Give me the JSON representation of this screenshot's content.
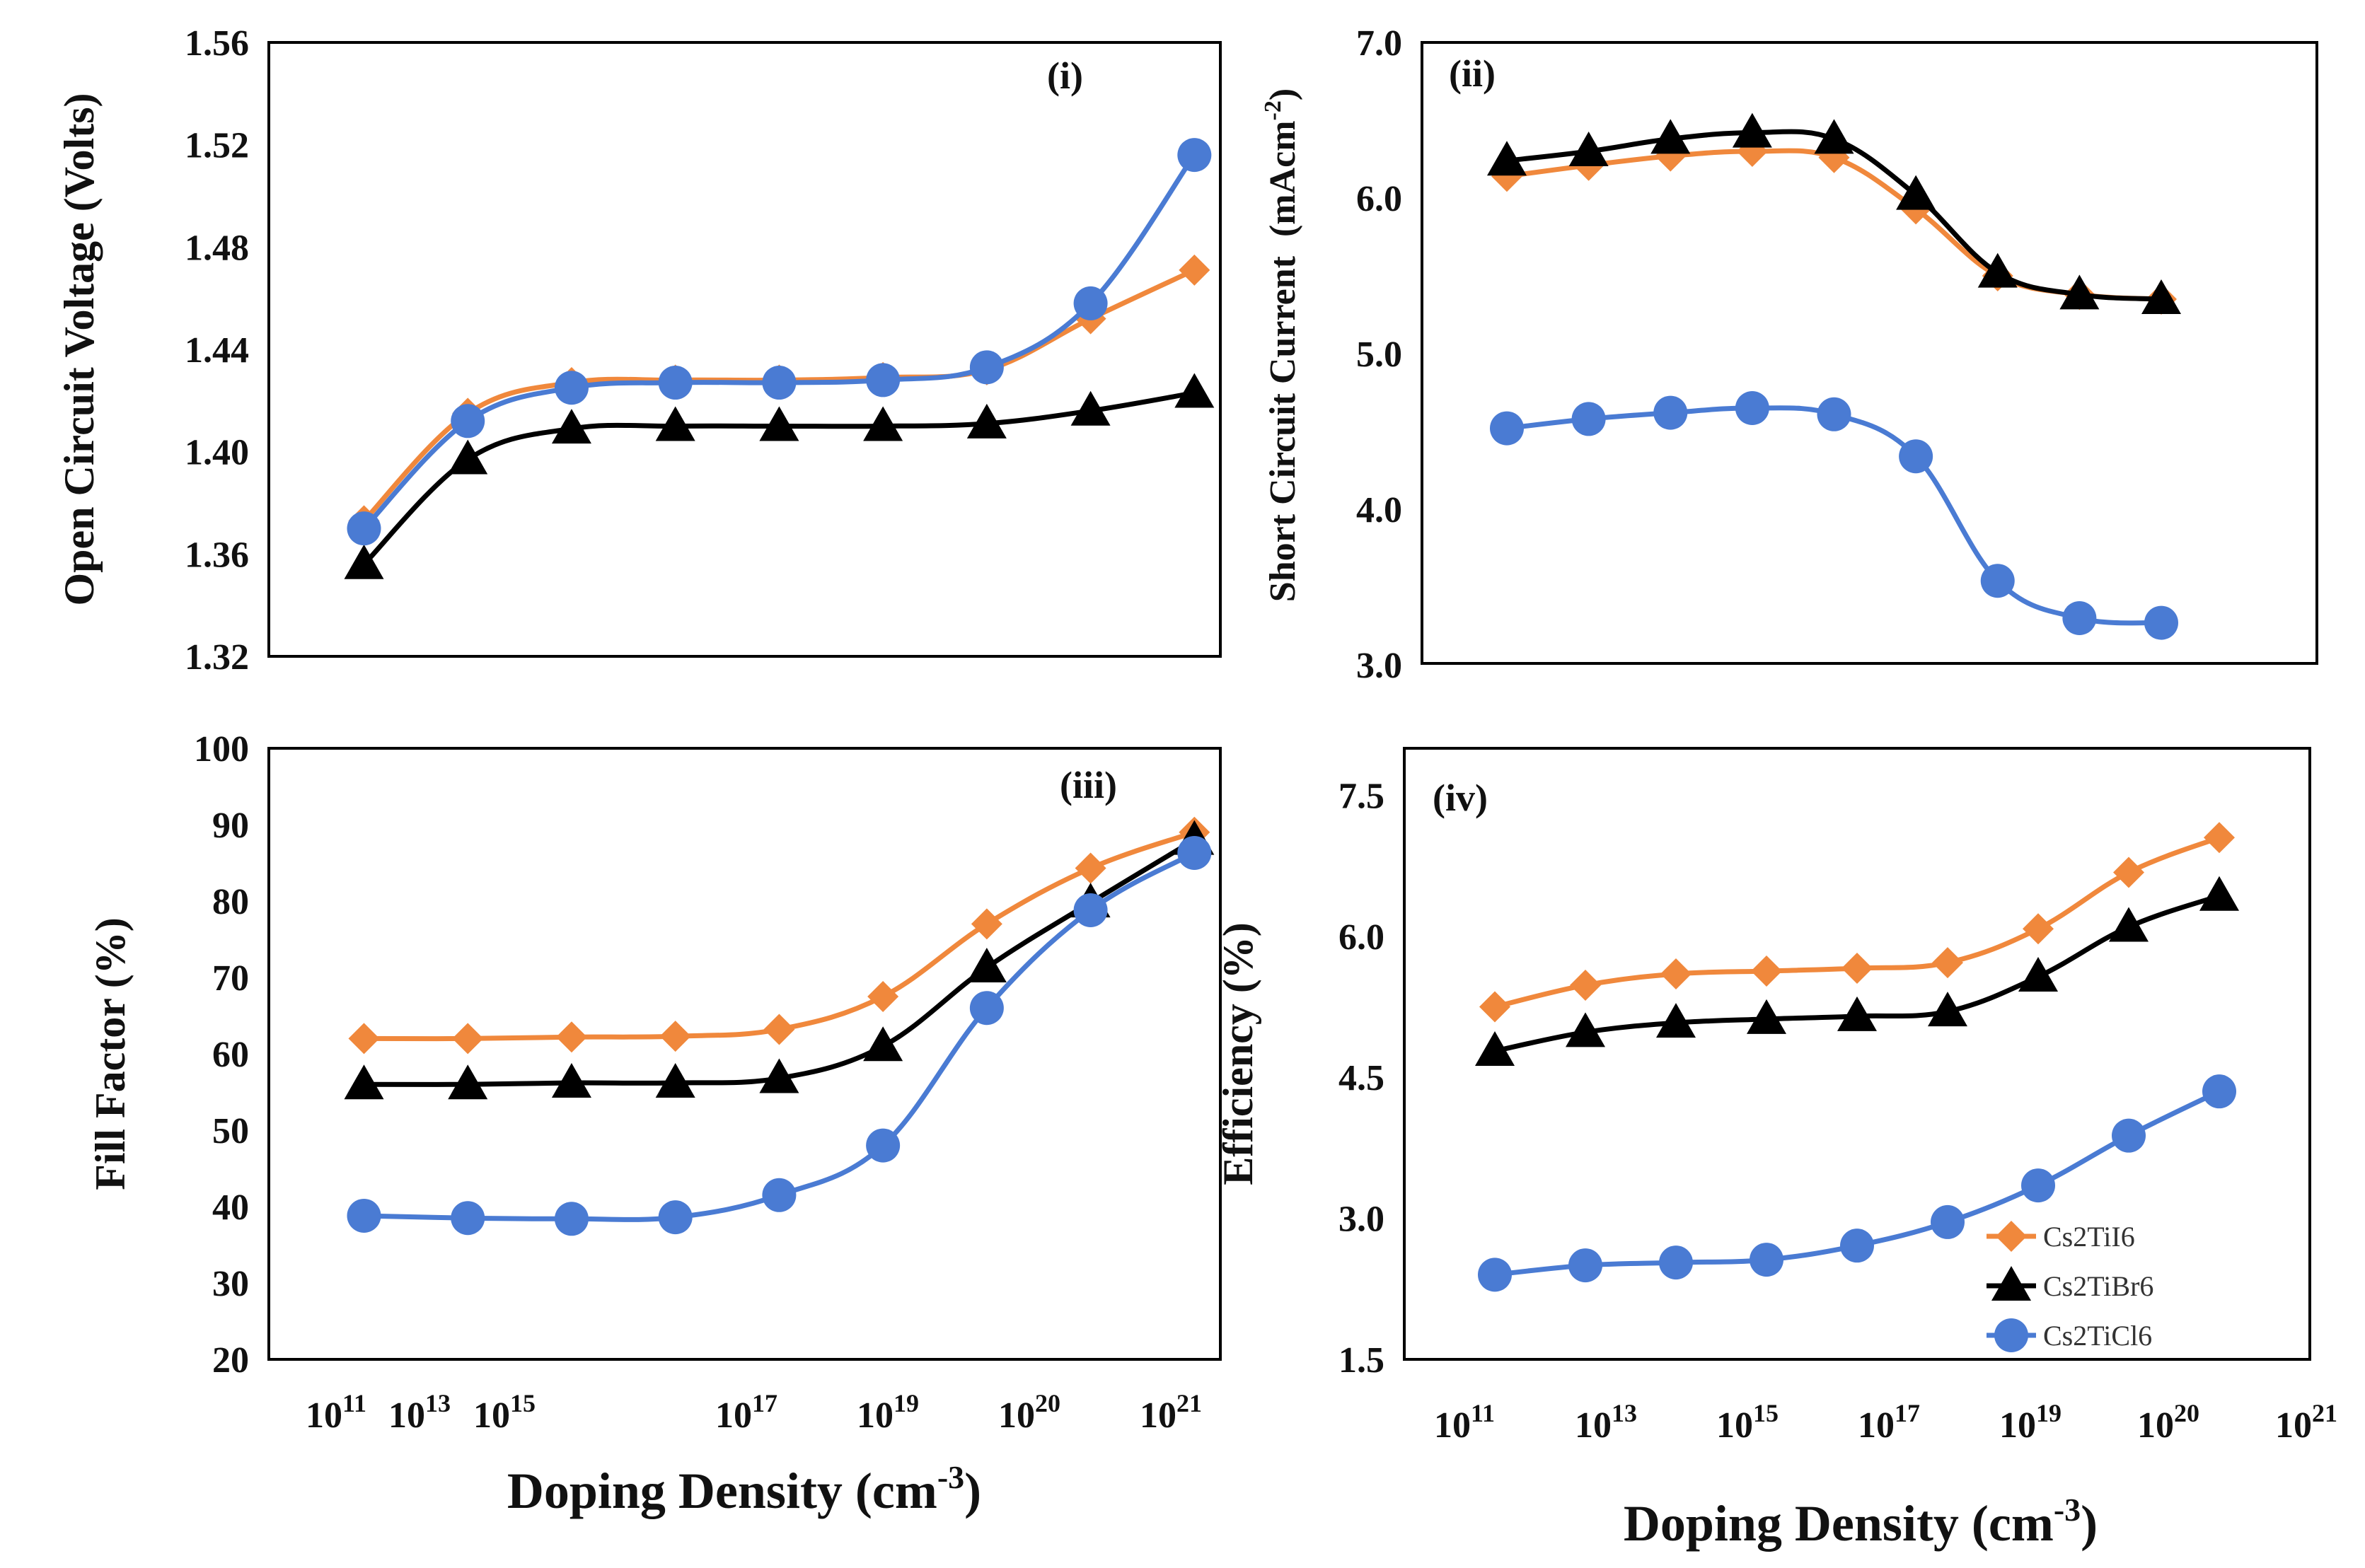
{
  "colors": {
    "Cs2TiI6": "#F0883C",
    "Cs2TiBr6": "#000000",
    "Cs2TiCl6": "#4A7BD3"
  },
  "legend": [
    {
      "name": "Cs2TiI6",
      "marker": "diamond"
    },
    {
      "name": "Cs2TiBr6",
      "marker": "triangle"
    },
    {
      "name": "Cs2TiCl6",
      "marker": "circle"
    }
  ],
  "chart_data": [
    {
      "type": "line",
      "panel": "(i)",
      "ylabel": "Open Circuit Voltage (Volts)",
      "ylim": [
        1.32,
        1.56
      ],
      "yticks": [
        "1.32",
        "1.36",
        "1.40",
        "1.44",
        "1.48",
        "1.52",
        "1.56"
      ],
      "xlabel": "",
      "xlim": [
        10,
        21
      ],
      "xticks": [
        11,
        13,
        15,
        17,
        19,
        20,
        21
      ],
      "xtick_base": "10",
      "series": [
        {
          "name": "Cs2TiI6",
          "x": [
            11.1,
            12.3,
            13.5,
            14.7,
            15.9,
            17.1,
            18.3,
            19.5,
            20.7
          ],
          "values": [
            1.373,
            1.415,
            1.427,
            1.428,
            1.428,
            1.429,
            1.432,
            1.452,
            1.471
          ]
        },
        {
          "name": "Cs2TiBr6",
          "x": [
            11.1,
            12.3,
            13.5,
            14.7,
            15.9,
            17.1,
            18.3,
            19.5,
            20.7
          ],
          "values": [
            1.356,
            1.397,
            1.409,
            1.41,
            1.41,
            1.41,
            1.411,
            1.416,
            1.423
          ]
        },
        {
          "name": "Cs2TiCl6",
          "x": [
            11.1,
            12.3,
            13.5,
            14.7,
            15.9,
            17.1,
            18.3,
            19.5,
            20.7
          ],
          "values": [
            1.37,
            1.412,
            1.425,
            1.427,
            1.427,
            1.428,
            1.433,
            1.458,
            1.516
          ]
        }
      ]
    },
    {
      "type": "line",
      "panel": "(ii)",
      "ylabel": "Short Circuit Current",
      "ylabel_unit": "(mAcm",
      "ylabel_unit_sup": "-2",
      "ylabel_unit_close": ")",
      "ylim": [
        3.0,
        7.0
      ],
      "yticks": [
        "3.0",
        "4.0",
        "5.0",
        "6.0",
        "7.0"
      ],
      "xlabel": "",
      "series": [
        {
          "name": "Cs2TiI6",
          "x": [
            1,
            2,
            3,
            4,
            5,
            6,
            7,
            8,
            9
          ],
          "values": [
            6.14,
            6.21,
            6.27,
            6.3,
            6.26,
            5.93,
            5.5,
            5.38,
            5.35
          ]
        },
        {
          "name": "Cs2TiBr6",
          "x": [
            1,
            2,
            3,
            4,
            5,
            6,
            7,
            8,
            9
          ],
          "values": [
            6.24,
            6.3,
            6.38,
            6.42,
            6.38,
            6.02,
            5.52,
            5.38,
            5.35
          ]
        },
        {
          "name": "Cs2TiCl6",
          "x": [
            1,
            2,
            3,
            4,
            5,
            6,
            7,
            8,
            9
          ],
          "values": [
            4.52,
            4.58,
            4.62,
            4.65,
            4.61,
            4.34,
            3.54,
            3.3,
            3.27
          ]
        }
      ]
    },
    {
      "type": "line",
      "panel": "(iii)",
      "ylabel": "Fill Factor (%)",
      "ylim": [
        20,
        100
      ],
      "yticks": [
        "20",
        "30",
        "40",
        "50",
        "60",
        "70",
        "80",
        "90",
        "100"
      ],
      "xlabel": "Doping Density (cm",
      "xlabel_sup": "-3",
      "xlabel_close": ")",
      "xlim": [
        10,
        21
      ],
      "xticks": [
        11,
        13,
        15,
        17,
        19,
        20,
        21
      ],
      "xtick_base": "10",
      "series": [
        {
          "name": "Cs2TiI6",
          "x": [
            11.1,
            12.3,
            13.5,
            14.7,
            15.9,
            17.1,
            18.3,
            19.5,
            20.7
          ],
          "values": [
            62.0,
            62.0,
            62.2,
            62.3,
            63.2,
            67.5,
            77.0,
            84.3,
            89.0
          ]
        },
        {
          "name": "Cs2TiBr6",
          "x": [
            11.1,
            12.3,
            13.5,
            14.7,
            15.9,
            17.1,
            18.3,
            19.5,
            20.7
          ],
          "values": [
            56.0,
            56.0,
            56.2,
            56.2,
            56.8,
            61.0,
            71.3,
            79.8,
            88.0
          ]
        },
        {
          "name": "Cs2TiCl6",
          "x": [
            11.1,
            12.3,
            13.5,
            14.7,
            15.9,
            17.1,
            18.3,
            19.5,
            20.7
          ],
          "values": [
            38.8,
            38.5,
            38.4,
            38.6,
            41.5,
            48.0,
            66.0,
            78.8,
            86.3
          ]
        }
      ]
    },
    {
      "type": "line",
      "panel": "(iv)",
      "ylabel": "Efficiency (%)",
      "ylim": [
        1.5,
        8.0
      ],
      "yticks": [
        "1.5",
        "3.0",
        "4.5",
        "6.0",
        "7.5"
      ],
      "xlabel": "Doping Density (cm",
      "xlabel_sup": "-3",
      "xlabel_close": ")",
      "xlim": [
        10,
        21
      ],
      "xticks": [
        11,
        13,
        15,
        17,
        19,
        20,
        21
      ],
      "xtick_base": "10",
      "series": [
        {
          "name": "Cs2TiI6",
          "x": [
            11.1,
            12.2,
            13.3,
            14.4,
            15.5,
            16.6,
            17.7,
            18.8,
            19.9
          ],
          "values": [
            5.25,
            5.48,
            5.6,
            5.63,
            5.66,
            5.72,
            6.08,
            6.68,
            7.05
          ]
        },
        {
          "name": "Cs2TiBr6",
          "x": [
            11.1,
            12.2,
            13.3,
            14.4,
            15.5,
            16.6,
            17.7,
            18.8,
            19.9
          ],
          "values": [
            4.78,
            4.98,
            5.08,
            5.12,
            5.15,
            5.2,
            5.57,
            6.1,
            6.43
          ]
        },
        {
          "name": "Cs2TiCl6",
          "x": [
            11.1,
            12.2,
            13.3,
            14.4,
            15.5,
            16.6,
            17.7,
            18.8,
            19.9
          ],
          "values": [
            2.4,
            2.5,
            2.53,
            2.56,
            2.71,
            2.96,
            3.35,
            3.88,
            4.35
          ]
        }
      ]
    }
  ]
}
